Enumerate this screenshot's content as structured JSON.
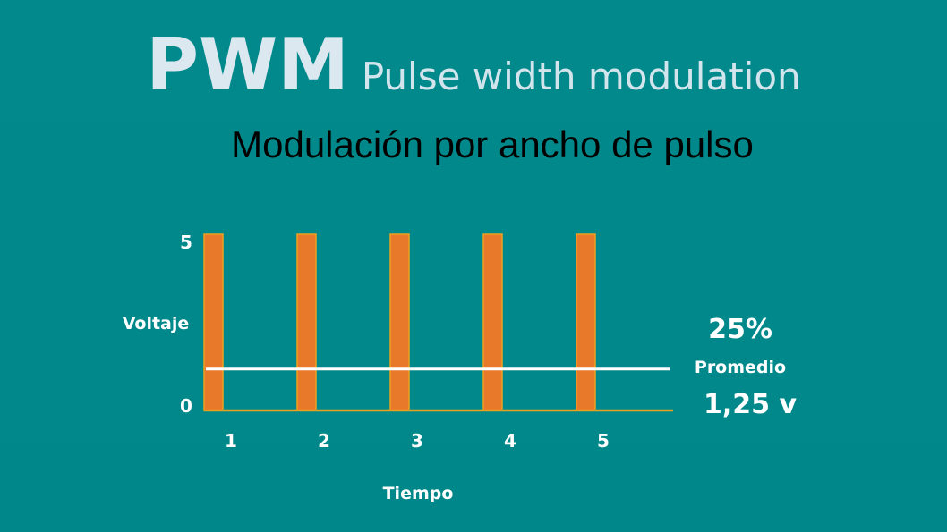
{
  "title": {
    "main": "PWM",
    "sub": "Pulse width modulation"
  },
  "subtitle": "Modulación por ancho de pulso",
  "chart_data": {
    "type": "bar",
    "categories": [
      "1",
      "2",
      "3",
      "4",
      "5"
    ],
    "values": [
      5,
      5,
      5,
      5,
      5
    ],
    "xlabel": "Tiempo",
    "ylabel": "Voltaje",
    "ylim": [
      0,
      5
    ],
    "yticks": [
      "0",
      "5"
    ],
    "average": {
      "value": 1.25,
      "label": "Promedio",
      "value_text": "1,25 v"
    },
    "duty_cycle_text": "25%",
    "colors": {
      "bar": "#e8792a",
      "bar_edge": "#f0a020",
      "baseline": "#e8a020",
      "average_line": "#ffffff"
    }
  }
}
